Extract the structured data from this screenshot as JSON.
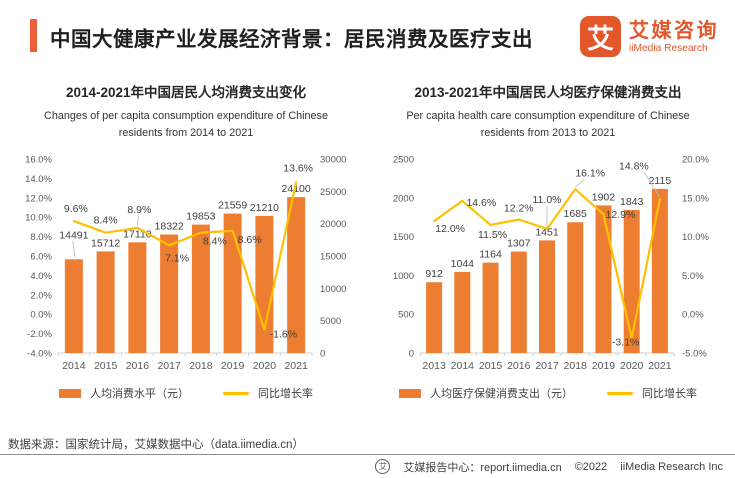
{
  "header": {
    "title": "中国大健康产业发展经济背景：居民消费及医疗支出",
    "logo": {
      "mark": "艾",
      "name_cn": "艾媒咨询",
      "name_en": "iiMedia Research"
    }
  },
  "colors": {
    "bar": "#ED7D31",
    "line": "#FFC000",
    "accent": "#ED5F39",
    "brand": "#E4572B"
  },
  "chart_data": [
    {
      "type": "bar",
      "title": "2014-2021年中国居民人均消费支出变化",
      "subtitle": "Changes of per capita consumption expenditure of Chinese residents from 2014 to 2021",
      "categories": [
        "2014",
        "2015",
        "2016",
        "2017",
        "2018",
        "2019",
        "2020",
        "2021"
      ],
      "series": [
        {
          "name": "人均消费水平（元）",
          "type": "bar",
          "axis": "right",
          "values": [
            14491,
            15712,
            17110,
            18322,
            19853,
            21559,
            21210,
            24100
          ],
          "label_dy": [
            -16,
            0,
            0,
            0,
            0,
            0,
            0,
            0
          ],
          "leaders": [
            0
          ]
        },
        {
          "name": "同比增长率",
          "type": "line",
          "axis": "left",
          "unit": "%",
          "values": [
            9.6,
            8.4,
            8.9,
            7.1,
            8.4,
            8.6,
            -1.6,
            13.6
          ],
          "label_offsets": [
            [
              2,
              -9
            ],
            [
              0,
              -9
            ],
            [
              2,
              -15
            ],
            [
              8,
              16
            ],
            [
              14,
              12
            ],
            [
              17,
              12
            ],
            [
              19,
              8
            ],
            [
              2,
              -11
            ]
          ],
          "leaders": [
            2
          ]
        }
      ],
      "axes": {
        "left": {
          "min": -4,
          "max": 16,
          "step": 2,
          "format": "percent"
        },
        "right": {
          "min": 0,
          "max": 30000,
          "step": 5000,
          "format": "number"
        }
      },
      "grid": false,
      "legend_position": "bottom"
    },
    {
      "type": "bar",
      "title": "2013-2021年中国居民人均医疗保健消费支出",
      "subtitle": "Per capita health care consumption expenditure of Chinese residents from 2013 to 2021",
      "categories": [
        "2013",
        "2014",
        "2015",
        "2016",
        "2017",
        "2018",
        "2019",
        "2020",
        "2021"
      ],
      "series": [
        {
          "name": "人均医疗保健消费支出（元）",
          "type": "bar",
          "axis": "left",
          "values": [
            912,
            1044,
            1164,
            1307,
            1451,
            1685,
            1902,
            1843,
            2115
          ],
          "label_dy": [
            0,
            0,
            0,
            0,
            0,
            0,
            0,
            0,
            0
          ],
          "leaders": []
        },
        {
          "name": "同比增长率",
          "type": "line",
          "axis": "right",
          "unit": "%",
          "values": [
            12.0,
            14.6,
            11.5,
            12.2,
            11.0,
            16.1,
            12.9,
            -3.1,
            14.8
          ],
          "label_offsets": [
            [
              16,
              11
            ],
            [
              19,
              5
            ],
            [
              2,
              13
            ],
            [
              0,
              -8
            ],
            [
              0,
              -26
            ],
            [
              15,
              -13
            ],
            [
              17,
              4
            ],
            [
              -6,
              7
            ],
            [
              -26,
              -30
            ]
          ],
          "leaders": [
            4,
            5,
            8
          ]
        }
      ],
      "axes": {
        "left": {
          "min": 0,
          "max": 2500,
          "step": 500,
          "format": "number"
        },
        "right": {
          "min": -5,
          "max": 20,
          "step": 5,
          "format": "percent"
        }
      },
      "grid": false,
      "legend_position": "bottom"
    }
  ],
  "source": "数据来源：国家统计局，艾媒数据中心（data.iimedia.cn）",
  "footer": {
    "center": "艾媒报告中心：report.iimedia.cn",
    "copyright": "©2022",
    "company": "iiMedia Research Inc"
  }
}
